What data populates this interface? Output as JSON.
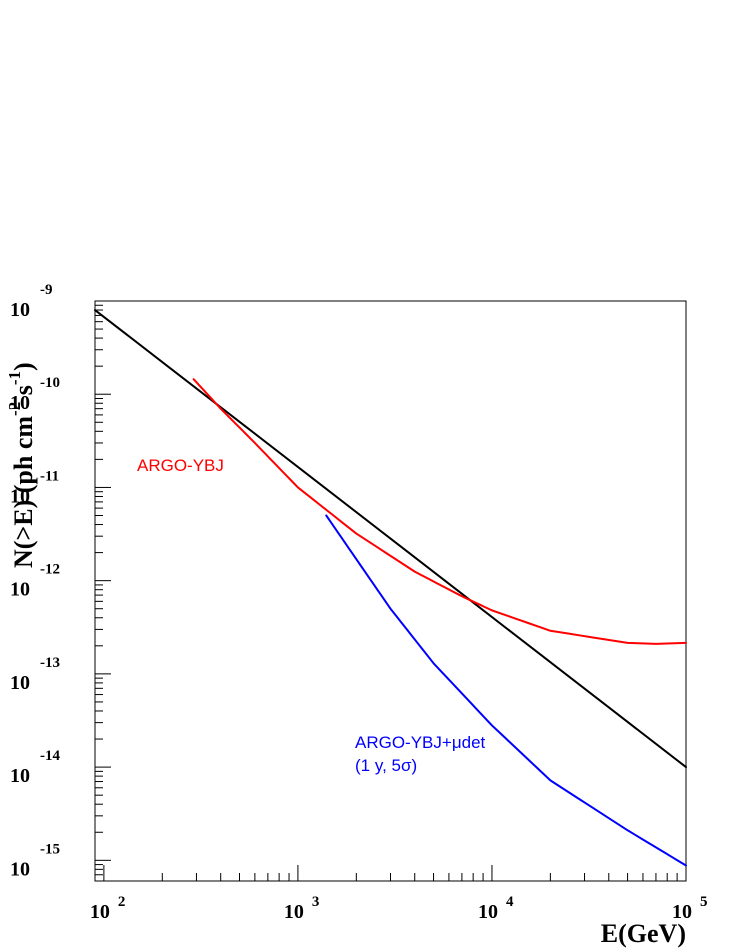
{
  "chart_data": {
    "type": "line",
    "xscale": "log",
    "yscale": "log",
    "xlim": [
      90,
      100000
    ],
    "ylim": [
      6e-16,
      1e-09
    ],
    "xlabel": "E(GeV)",
    "ylabel": {
      "base": "N(>E) (ph cm",
      "exp1": "-2",
      "mid": " s",
      "exp2": "-1",
      "end": ")"
    },
    "x_ticks": [
      {
        "value": 100,
        "base": "10",
        "exp": "2"
      },
      {
        "value": 1000,
        "base": "10",
        "exp": "3"
      },
      {
        "value": 10000,
        "base": "10",
        "exp": "4"
      },
      {
        "value": 100000,
        "base": "10",
        "exp": "5"
      }
    ],
    "y_ticks": [
      {
        "value": 1e-09,
        "base": "10",
        "exp": "-9"
      },
      {
        "value": 1e-10,
        "base": "10",
        "exp": "-10"
      },
      {
        "value": 1e-11,
        "base": "10",
        "exp": "-11"
      },
      {
        "value": 1e-12,
        "base": "10",
        "exp": "-12"
      },
      {
        "value": 1e-13,
        "base": "10",
        "exp": "-13"
      },
      {
        "value": 1e-14,
        "base": "10",
        "exp": "-14"
      },
      {
        "value": 1e-15,
        "base": "10",
        "exp": "-15"
      }
    ],
    "series": [
      {
        "color": "#000000",
        "x": [
          90,
          100000
        ],
        "y": [
          8e-10,
          1e-14
        ]
      },
      {
        "color": "#ff0000",
        "x": [
          290,
          400,
          600,
          1000,
          2000,
          4000,
          7000,
          10000,
          20000,
          50000,
          70000,
          100000
        ],
        "y": [
          1.45e-10,
          7e-11,
          3e-11,
          1e-11,
          3.2e-12,
          1.25e-12,
          6.8e-13,
          4.8e-13,
          2.9e-13,
          2.15e-13,
          2.1e-13,
          2.15e-13
        ]
      },
      {
        "color": "#0000ff",
        "x": [
          1400,
          2000,
          3000,
          5000,
          10000,
          20000,
          50000,
          100000
        ],
        "y": [
          5e-12,
          1.7e-12,
          5e-13,
          1.3e-13,
          2.8e-14,
          7.2e-15,
          2.1e-15,
          8.8e-16
        ]
      }
    ],
    "annotations": [
      {
        "text": "ARGO-YBJ",
        "color": "#ff0000"
      },
      {
        "text": "ARGO-YBJ+μdet",
        "color": "#0000ff"
      },
      {
        "text": "(1 y, 5σ)",
        "color": "#0000ff"
      }
    ]
  }
}
